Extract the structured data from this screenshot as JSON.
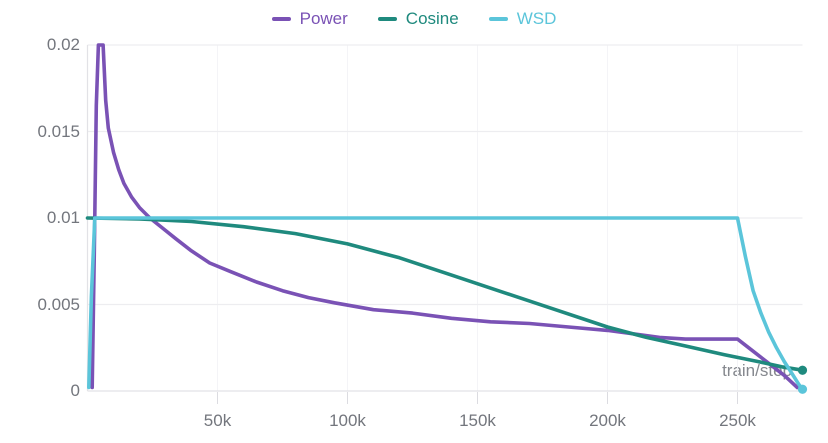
{
  "legend": {
    "items": [
      {
        "label": "Power",
        "color": "#7a52b5"
      },
      {
        "label": "Cosine",
        "color": "#1f8a7e"
      },
      {
        "label": "WSD",
        "color": "#5bc5da"
      }
    ]
  },
  "chart_data": {
    "type": "line",
    "title": "",
    "xlabel": "train/step",
    "ylabel": "",
    "xlim": [
      0,
      275000
    ],
    "ylim": [
      0,
      0.02
    ],
    "grid": "on",
    "legend_position": "top-center",
    "x_ticks": [
      {
        "value": 50000,
        "label": "50k"
      },
      {
        "value": 100000,
        "label": "100k"
      },
      {
        "value": 150000,
        "label": "150k"
      },
      {
        "value": 200000,
        "label": "200k"
      },
      {
        "value": 250000,
        "label": "250k"
      }
    ],
    "y_ticks": [
      {
        "value": 0,
        "label": "0"
      },
      {
        "value": 0.005,
        "label": "0.005"
      },
      {
        "value": 0.01,
        "label": "0.01"
      },
      {
        "value": 0.015,
        "label": "0.015"
      },
      {
        "value": 0.02,
        "label": "0.02"
      }
    ],
    "series": [
      {
        "name": "Power",
        "color": "#7a52b5",
        "end_dot": false,
        "points": [
          [
            1800,
            0.0002
          ],
          [
            2600,
            0.008
          ],
          [
            3400,
            0.0165
          ],
          [
            4200,
            0.02
          ],
          [
            6000,
            0.02
          ],
          [
            7000,
            0.0168
          ],
          [
            8000,
            0.0152
          ],
          [
            10000,
            0.0138
          ],
          [
            12000,
            0.0128
          ],
          [
            14000,
            0.012
          ],
          [
            17000,
            0.0112
          ],
          [
            20000,
            0.0106
          ],
          [
            24000,
            0.01
          ],
          [
            29000,
            0.0094
          ],
          [
            34000,
            0.0088
          ],
          [
            40000,
            0.0081
          ],
          [
            47000,
            0.0074
          ],
          [
            55000,
            0.0069
          ],
          [
            65000,
            0.0063
          ],
          [
            75000,
            0.0058
          ],
          [
            85000,
            0.0054
          ],
          [
            95000,
            0.0051
          ],
          [
            110000,
            0.0047
          ],
          [
            125000,
            0.0045
          ],
          [
            140000,
            0.0042
          ],
          [
            155000,
            0.004
          ],
          [
            170000,
            0.0039
          ],
          [
            185000,
            0.0037
          ],
          [
            200000,
            0.0035
          ],
          [
            210000,
            0.0033
          ],
          [
            220000,
            0.0031
          ],
          [
            230000,
            0.003
          ],
          [
            250000,
            0.003
          ],
          [
            256000,
            0.0023
          ],
          [
            262000,
            0.0016
          ],
          [
            268000,
            0.0009
          ],
          [
            273000,
            0.0002
          ]
        ]
      },
      {
        "name": "Cosine",
        "color": "#1f8a7e",
        "end_dot": true,
        "points": [
          [
            0,
            0.01
          ],
          [
            20000,
            0.00995
          ],
          [
            40000,
            0.0098
          ],
          [
            60000,
            0.0095
          ],
          [
            80000,
            0.0091
          ],
          [
            100000,
            0.0085
          ],
          [
            120000,
            0.0077
          ],
          [
            140000,
            0.0067
          ],
          [
            160000,
            0.0057
          ],
          [
            180000,
            0.0047
          ],
          [
            200000,
            0.0037
          ],
          [
            215000,
            0.0031
          ],
          [
            230000,
            0.0026
          ],
          [
            245000,
            0.0021
          ],
          [
            258000,
            0.0017
          ],
          [
            267000,
            0.0014
          ],
          [
            275000,
            0.0012
          ]
        ]
      },
      {
        "name": "WSD",
        "color": "#5bc5da",
        "end_dot": true,
        "points": [
          [
            500,
            0.0002
          ],
          [
            1500,
            0.0055
          ],
          [
            2800,
            0.01
          ],
          [
            250000,
            0.01
          ],
          [
            253000,
            0.0078
          ],
          [
            256000,
            0.0058
          ],
          [
            259000,
            0.0045
          ],
          [
            262000,
            0.0034
          ],
          [
            265000,
            0.0025
          ],
          [
            268000,
            0.0017
          ],
          [
            271000,
            0.001
          ],
          [
            273500,
            0.0004
          ],
          [
            275000,
            0.0001
          ]
        ]
      }
    ]
  },
  "colors": {
    "h_gridline": "#ededf0",
    "v_gridline": "#f4f4f7",
    "axis_line": "#e2e2e6",
    "tick_mark": "#dcdce1",
    "tick_text": "#73767d"
  }
}
